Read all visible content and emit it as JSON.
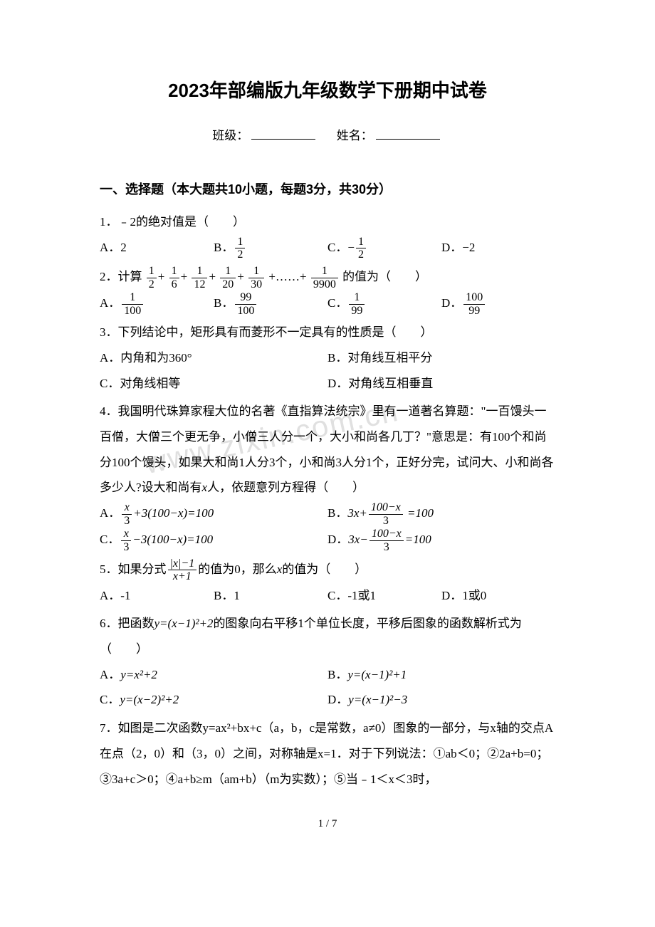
{
  "title": "2023年部编版九年级数学下册期中试卷",
  "class_label": "班级：",
  "name_label": "姓名：",
  "section1": "一、选择题（本大题共10小题，每题3分，共30分）",
  "q1": {
    "stem": "1．﹣2的绝对值是（　　）",
    "a": "A．2",
    "b_prefix": "B．",
    "b_num": "1",
    "b_den": "2",
    "c_prefix": "C．",
    "c_neg": "−",
    "c_num": "1",
    "c_den": "2",
    "d": "D．−2"
  },
  "q2": {
    "prefix": "2．计算",
    "f1n": "1",
    "f1d": "2",
    "f2n": "1",
    "f2d": "6",
    "f3n": "1",
    "f3d": "12",
    "f4n": "1",
    "f4d": "20",
    "f5n": "1",
    "f5d": "30",
    "dots": "+……+",
    "f6n": "1",
    "f6d": "9900",
    "suffix": "的值为（　　）",
    "a_prefix": "A．",
    "a_num": "1",
    "a_den": "100",
    "b_prefix": "B．",
    "b_num": "99",
    "b_den": "100",
    "c_prefix": "C．",
    "c_num": "1",
    "c_den": "99",
    "d_prefix": "D．",
    "d_num": "100",
    "d_den": "99"
  },
  "q3": {
    "stem": "3．下列结论中，矩形具有而菱形不一定具有的性质是（　　）",
    "a": "A．内角和为360°",
    "b": "B．对角线互相平分",
    "c": "C．对角线相等",
    "d": "D．对角线互相垂直"
  },
  "q4": {
    "para": "4．我国明代珠算家程大位的名著《直指算法统宗》里有一道著名算题：\"一百馒头一百僧，大僧三个更无争，小僧三人分一个，大小和尚各几丁？\"意思是：有100个和尚分100个馒头，如果大和尚1人分3个，小和尚3人分1个，正好分完，试问大、小和尚各多少人?设大和尚有",
    "var": "x",
    "para2": "人，依题意列方程得（　　）",
    "a_prefix": "A．",
    "a_num": "x",
    "a_den": "3",
    "a_rest": "+3(100−x)=100",
    "b_prefix": "B．",
    "b_lead": "3x+",
    "b_num": "100−x",
    "b_den": "3",
    "b_rest": " =100",
    "c_prefix": "C．",
    "c_num": "x",
    "c_den": "3",
    "c_rest": "−3(100−x)=100",
    "d_prefix": "D．",
    "d_lead": "3x−",
    "d_num": "100−x",
    "d_den": "3",
    "d_rest": "=100"
  },
  "q5": {
    "prefix": "5．如果分式",
    "num": "|x|−1",
    "den": "x+1",
    "mid": "的值为0，那么",
    "var": "x",
    "suffix": "的值为（　　）",
    "a": "A．-1",
    "b": "B．1",
    "c": "C．-1或1",
    "d": "D．1或0"
  },
  "q6": {
    "prefix": "6．把函数",
    "expr": "y=(x−1)²+2",
    "suffix": "的图象向右平移1个单位长度，平移后图象的函数解析式为（　　）",
    "a_prefix": "A．",
    "a": "y=x²+2",
    "b_prefix": "B．",
    "b": "y=(x−1)²+1",
    "c_prefix": "C．",
    "c": "y=(x−2)²+2",
    "d_prefix": "D．",
    "d": "y=(x−1)²−3"
  },
  "q7": {
    "text": "7．如图是二次函数y=ax²+bx+c（a，b，c是常数，a≠0）图象的一部分，与x轴的交点A在点（2，0）和（3，0）之间，对称轴是x=1．对于下列说法：①ab＜0；②2a+b=0；③3a+c＞0；④a+b≥m（am+b）（m为实数）；⑤当﹣1＜x＜3时，"
  },
  "page": "1 / 7",
  "watermark": "www.zixin.com.cn"
}
